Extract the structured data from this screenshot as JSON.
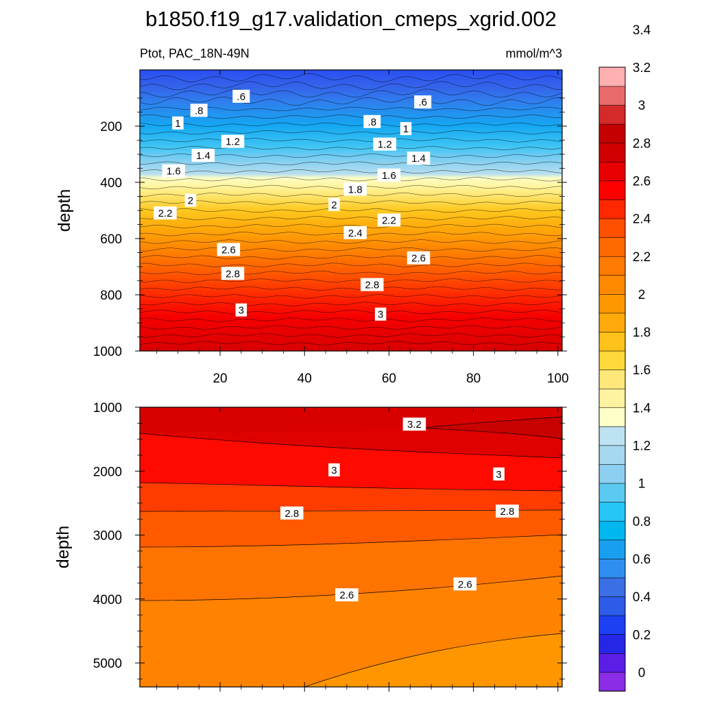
{
  "chart_data": {
    "type": "contour",
    "title": "b1850.f19_g17.validation_cmeps_xgrid.002",
    "subtitle_left": "Ptot, PAC_18N-49N",
    "subtitle_right": "mmol/m^3",
    "ylabel": "depth",
    "colorbar": {
      "levels": [
        "0",
        "0.2",
        "0.4",
        "0.6",
        "0.8",
        "1",
        "1.2",
        "1.4",
        "1.6",
        "1.8",
        "2",
        "2.2",
        "2.4",
        "2.6",
        "2.8",
        "3",
        "3.2",
        "3.4"
      ],
      "colors": [
        "#8b2ce6",
        "#5c1ee6",
        "#2626e6",
        "#1c40f2",
        "#2c5ce8",
        "#3a6fe6",
        "#2f8ff0",
        "#189fef",
        "#00b8f0",
        "#26c6f6",
        "#5cc9f0",
        "#8dcff1",
        "#a6d8ef",
        "#bde2f1",
        "#ffffc8",
        "#fff2a0",
        "#ffe87a",
        "#ffd93a",
        "#ffc21a",
        "#ffaa0a",
        "#ff9800",
        "#ff8a00",
        "#ff7a00",
        "#ff6a00",
        "#ff5000",
        "#ff2800",
        "#ff0000",
        "#e80000",
        "#d10000",
        "#c40000",
        "#d42a2a",
        "#e86a6a",
        "#ffb0b0"
      ]
    },
    "panels": [
      {
        "name": "upper",
        "x_ticks": [
          "20",
          "40",
          "60",
          "80",
          "100"
        ],
        "y_ticks": [
          "200",
          "400",
          "600",
          "800",
          "1000"
        ],
        "xlim": [
          1,
          101
        ],
        "ylim": [
          0,
          1000
        ],
        "contour_labels": [
          {
            "text": ".6",
            "x": 25,
            "y": 95
          },
          {
            "text": ".8",
            "x": 15,
            "y": 145
          },
          {
            "text": "1",
            "x": 10,
            "y": 190
          },
          {
            "text": "1.2",
            "x": 23,
            "y": 255
          },
          {
            "text": "1.4",
            "x": 16,
            "y": 305
          },
          {
            "text": "1.6",
            "x": 9,
            "y": 360
          },
          {
            "text": "2",
            "x": 13,
            "y": 465
          },
          {
            "text": "2.2",
            "x": 7,
            "y": 510
          },
          {
            "text": "2.6",
            "x": 22,
            "y": 640
          },
          {
            "text": "2.8",
            "x": 23,
            "y": 725
          },
          {
            "text": "3",
            "x": 25,
            "y": 855
          },
          {
            "text": ".6",
            "x": 68,
            "y": 115
          },
          {
            "text": ".8",
            "x": 56,
            "y": 185
          },
          {
            "text": "1",
            "x": 64,
            "y": 210
          },
          {
            "text": "1.2",
            "x": 59,
            "y": 265
          },
          {
            "text": "1.4",
            "x": 67,
            "y": 315
          },
          {
            "text": "1.6",
            "x": 60,
            "y": 375
          },
          {
            "text": "1.8",
            "x": 52,
            "y": 425
          },
          {
            "text": "2",
            "x": 47,
            "y": 480
          },
          {
            "text": "2.2",
            "x": 60,
            "y": 535
          },
          {
            "text": "2.4",
            "x": 52,
            "y": 580
          },
          {
            "text": "2.6",
            "x": 67,
            "y": 670
          },
          {
            "text": "2.8",
            "x": 56,
            "y": 765
          },
          {
            "text": "3",
            "x": 58,
            "y": 870
          }
        ]
      },
      {
        "name": "lower",
        "y_ticks": [
          "1000",
          "2000",
          "3000",
          "4000",
          "5000"
        ],
        "xlim": [
          1,
          101
        ],
        "ylim": [
          1000,
          5375
        ],
        "contour_labels": [
          {
            "text": "3.2",
            "x": 66,
            "y": 1270
          },
          {
            "text": "3",
            "x": 47,
            "y": 1985
          },
          {
            "text": "3",
            "x": 86,
            "y": 2050
          },
          {
            "text": "2.8",
            "x": 37,
            "y": 2660
          },
          {
            "text": "2.8",
            "x": 88,
            "y": 2630
          },
          {
            "text": "2.6",
            "x": 50,
            "y": 3940
          },
          {
            "text": "2.6",
            "x": 78,
            "y": 3770
          }
        ]
      }
    ]
  }
}
